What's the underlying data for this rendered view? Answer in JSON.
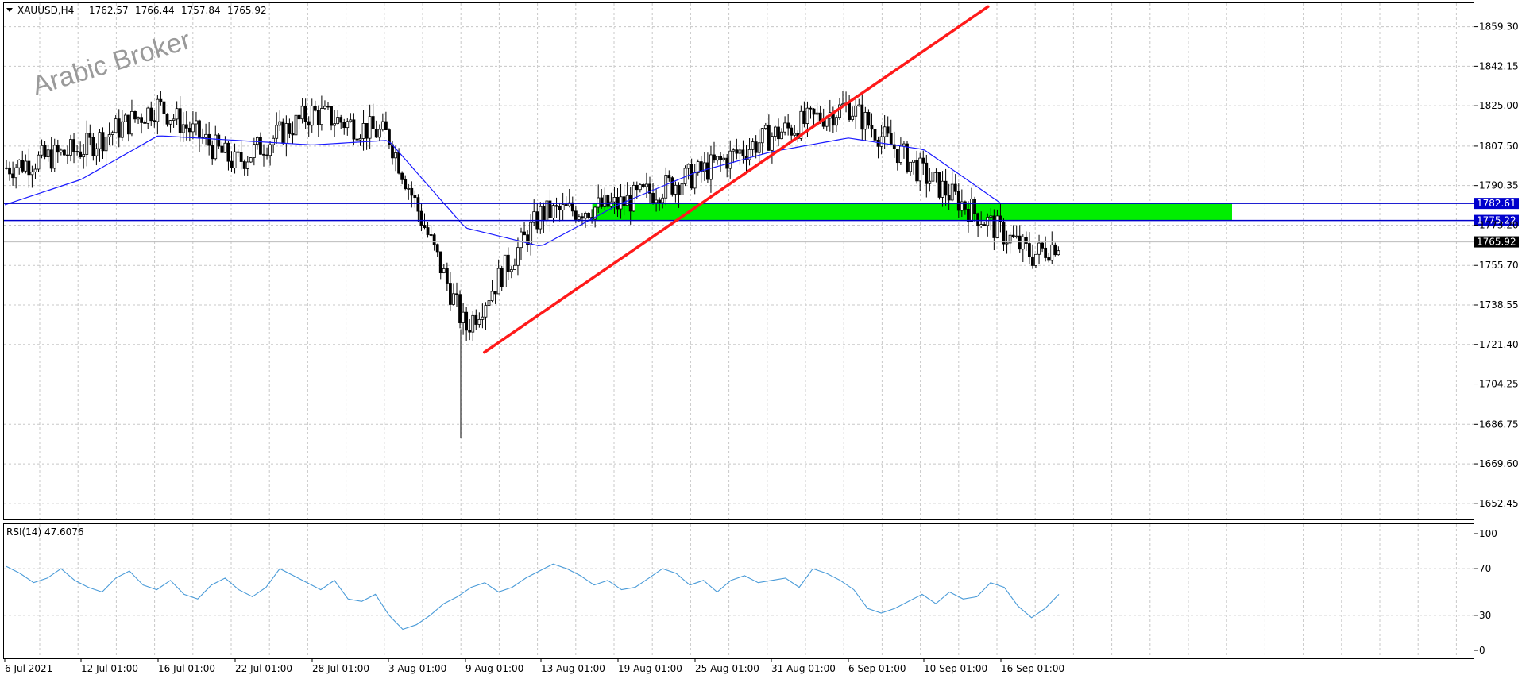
{
  "window": {
    "symbol_header": "XAUUSD,H4",
    "ohlc": [
      "1762.57",
      "1766.44",
      "1757.84",
      "1765.92"
    ]
  },
  "watermark": "Arabic Broker",
  "colors": {
    "background": "#ffffff",
    "grid": "#c8c8c8",
    "candle": "#000000",
    "ma": "#1a1aff",
    "trendline": "#ff1a1a",
    "zone": "#00ee00",
    "level_line": "#0000cc",
    "rsi": "#4a9bd8",
    "label_bg": "#0000cc",
    "price_label_bg": "#000000"
  },
  "chart_data": [
    {
      "type": "line",
      "name": "price",
      "series": [
        {
          "x": [
            "6 Jul 2021",
            "12 Jul 01:00",
            "16 Jul 01:00",
            "22 Jul 01:00",
            "28 Jul 01:00",
            "3 Aug 01:00",
            "9 Aug 01:00",
            "13 Aug 01:00",
            "19 Aug 01:00",
            "25 Aug 01:00",
            "31 Aug 01:00",
            "6 Sep 01:00",
            "10 Sep 01:00",
            "16 Sep 01:00"
          ],
          "close": [
            1798,
            1806,
            1825,
            1800,
            1822,
            1812,
            1728,
            1778,
            1782,
            1795,
            1812,
            1825,
            1795,
            1765.92
          ],
          "ma": [
            1782,
            1793,
            1812,
            1810,
            1808,
            1810,
            1772,
            1764,
            1782,
            1796,
            1805,
            1811,
            1806,
            1782.61
          ]
        }
      ],
      "x_tick_labels": [
        "6 Jul 2021",
        "12 Jul 01:00",
        "16 Jul 01:00",
        "22 Jul 01:00",
        "28 Jul 01:00",
        "3 Aug 01:00",
        "9 Aug 01:00",
        "13 Aug 01:00",
        "19 Aug 01:00",
        "25 Aug 01:00",
        "31 Aug 01:00",
        "6 Sep 01:00",
        "10 Sep 01:00",
        "16 Sep 01:00"
      ],
      "y_tick_labels": [
        "1859.30",
        "1842.15",
        "1825.00",
        "1807.50",
        "1790.35",
        "1773.20",
        "1755.70",
        "1738.55",
        "1721.40",
        "1704.25",
        "1686.75",
        "1669.60",
        "1652.45"
      ],
      "y_ticks": [
        1859.3,
        1842.15,
        1825.0,
        1807.5,
        1790.35,
        1773.2,
        1755.7,
        1738.55,
        1721.4,
        1704.25,
        1686.75,
        1669.6,
        1652.45
      ],
      "ylim": [
        1645.5,
        1869.5
      ],
      "current_price": "1765.92",
      "levels": [
        {
          "value": 1782.61,
          "label": "1782.61"
        },
        {
          "value": 1775.22,
          "label": "1775.22"
        }
      ],
      "zone": {
        "from_date": "17 Aug 2021",
        "to_date": "4 Oct 2021",
        "low": 1775.22,
        "high": 1782.61
      },
      "trendline": {
        "from": [
          "10 Aug 2021",
          1718
        ],
        "to": [
          "15 Sep 2021",
          1868
        ]
      },
      "grid": true
    },
    {
      "type": "line",
      "name": "RSI(14)",
      "header": "RSI(14) 47.6076",
      "last_value": 47.6076,
      "y_tick_labels": [
        "100",
        "70",
        "30",
        "0"
      ],
      "ylim": [
        0,
        100
      ],
      "values": [
        72,
        66,
        58,
        62,
        70,
        60,
        54,
        50,
        62,
        68,
        56,
        52,
        60,
        48,
        44,
        56,
        62,
        52,
        46,
        54,
        70,
        64,
        58,
        52,
        60,
        44,
        42,
        48,
        30,
        18,
        22,
        30,
        40,
        46,
        54,
        58,
        50,
        54,
        62,
        68,
        74,
        70,
        64,
        56,
        60,
        52,
        54,
        62,
        70,
        66,
        56,
        60,
        50,
        60,
        64,
        58,
        60,
        62,
        54,
        70,
        66,
        60,
        52,
        36,
        32,
        36,
        42,
        48,
        40,
        50,
        44,
        46,
        58,
        54,
        38,
        28,
        36,
        48
      ]
    }
  ]
}
